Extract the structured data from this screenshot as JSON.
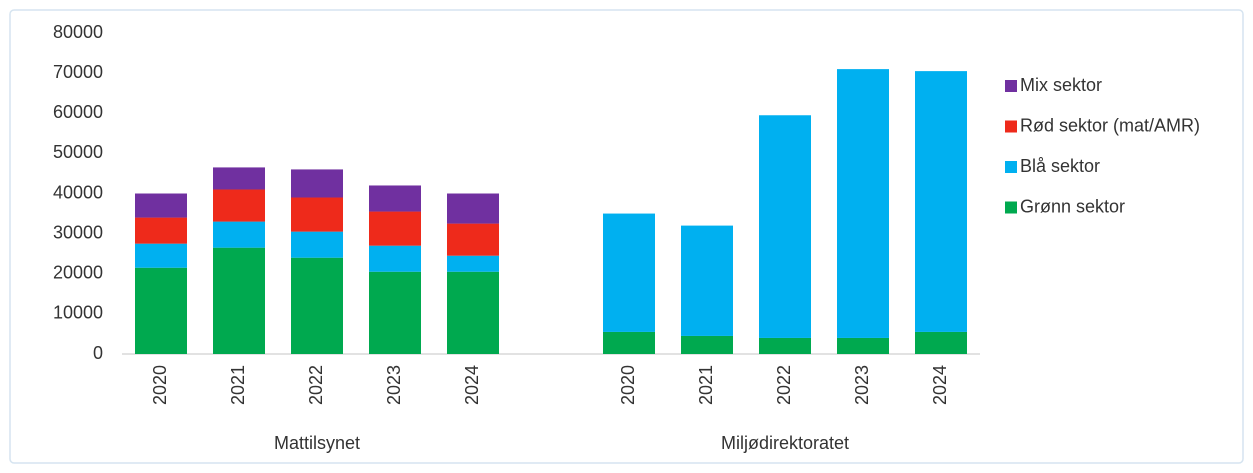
{
  "chart_data": {
    "type": "stacked_bar",
    "categories": [
      "2020",
      "2021",
      "2022",
      "2023",
      "2024",
      "2020",
      "2021",
      "2022",
      "2023",
      "2024"
    ],
    "group_labels": [
      "Mattilsynet",
      "Miljødirektoratet"
    ],
    "series": [
      {
        "name": "Grønn sektor",
        "color": "#00a94f",
        "values": [
          21500,
          26500,
          24000,
          20500,
          20500,
          5500,
          4500,
          4000,
          4000,
          5500
        ]
      },
      {
        "name": "Blå sektor",
        "color": "#00b0f0",
        "values": [
          6000,
          6500,
          6500,
          6500,
          4000,
          29500,
          27500,
          55500,
          67000,
          65000
        ]
      },
      {
        "name": "Rød sektor (mat/AMR)",
        "color": "#ee2a1b",
        "values": [
          6500,
          8000,
          8500,
          8500,
          8000,
          null,
          null,
          null,
          null,
          null
        ]
      },
      {
        "name": "Mix sektor",
        "color": "#7030a0",
        "values": [
          6000,
          5500,
          7000,
          6500,
          7500,
          null,
          null,
          null,
          null,
          null
        ]
      }
    ],
    "ylim": [
      0,
      80000
    ],
    "yticks": [
      0,
      10000,
      20000,
      30000,
      40000,
      50000,
      60000,
      70000,
      80000
    ],
    "grid": false,
    "legend": "right"
  }
}
